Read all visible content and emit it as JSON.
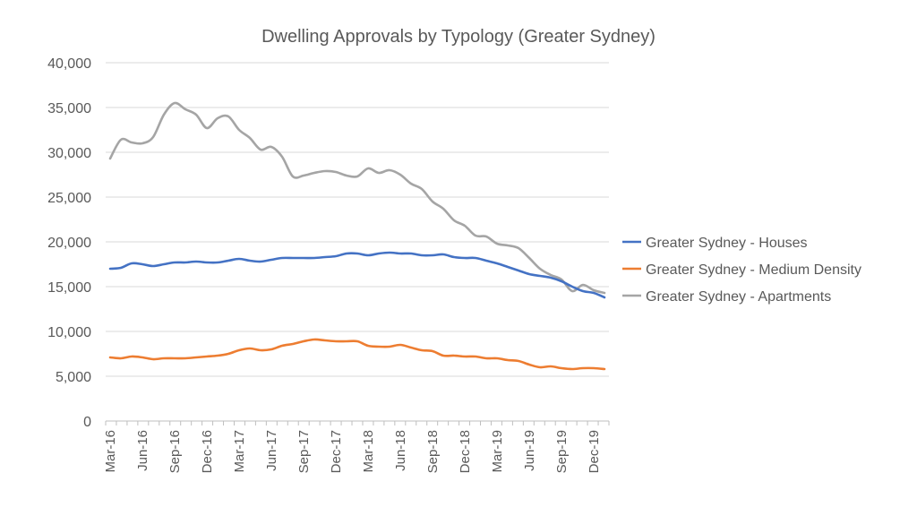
{
  "chart_data": {
    "type": "line",
    "title": "Dwelling Approvals by Typology (Greater Sydney)",
    "xlabel": "",
    "ylabel": "",
    "ylim": [
      0,
      40000
    ],
    "y_ticks": [
      "0",
      "5,000",
      "10,000",
      "15,000",
      "20,000",
      "25,000",
      "30,000",
      "35,000",
      "40,000"
    ],
    "y_tick_values": [
      0,
      5000,
      10000,
      15000,
      20000,
      25000,
      30000,
      35000,
      40000
    ],
    "x_tick_labels": [
      "Mar-16",
      "Jun-16",
      "Sep-16",
      "Dec-16",
      "Mar-17",
      "Jun-17",
      "Sep-17",
      "Dec-17",
      "Mar-18",
      "Jun-18",
      "Sep-18",
      "Dec-18",
      "Mar-19",
      "Jun-19",
      "Sep-19",
      "Dec-19"
    ],
    "x_tick_every": 3,
    "n_points": 47,
    "grid": true,
    "legend_position": "right",
    "series": [
      {
        "name": "Greater Sydney - Houses",
        "color": "#4472C4",
        "values": [
          17000,
          17100,
          17600,
          17500,
          17300,
          17500,
          17700,
          17700,
          17800,
          17700,
          17700,
          17900,
          18100,
          17900,
          17800,
          18000,
          18200,
          18200,
          18200,
          18200,
          18300,
          18400,
          18700,
          18700,
          18500,
          18700,
          18800,
          18700,
          18700,
          18500,
          18500,
          18600,
          18300,
          18200,
          18200,
          17900,
          17600,
          17200,
          16800,
          16400,
          16200,
          16000,
          15600,
          15000,
          14500,
          14300,
          13800
        ]
      },
      {
        "name": "Greater Sydney - Medium Density",
        "color": "#ED7D31",
        "values": [
          7100,
          7000,
          7200,
          7100,
          6900,
          7000,
          7000,
          7000,
          7100,
          7200,
          7300,
          7500,
          7900,
          8100,
          7900,
          8000,
          8400,
          8600,
          8900,
          9100,
          9000,
          8900,
          8900,
          8900,
          8400,
          8300,
          8300,
          8500,
          8200,
          7900,
          7800,
          7300,
          7300,
          7200,
          7200,
          7000,
          7000,
          6800,
          6700,
          6300,
          6000,
          6100,
          5900,
          5800,
          5900,
          5900,
          5800
        ]
      },
      {
        "name": "Greater Sydney - Apartments",
        "color": "#A5A5A5",
        "values": [
          29300,
          31400,
          31100,
          31000,
          31700,
          34200,
          35500,
          34800,
          34200,
          32700,
          33800,
          34000,
          32500,
          31600,
          30300,
          30600,
          29500,
          27300,
          27400,
          27700,
          27900,
          27800,
          27400,
          27300,
          28200,
          27700,
          28000,
          27500,
          26500,
          25900,
          24500,
          23700,
          22400,
          21800,
          20700,
          20600,
          19800,
          19600,
          19300,
          18200,
          17000,
          16300,
          15800,
          14500,
          15200,
          14600,
          14300
        ]
      }
    ]
  }
}
